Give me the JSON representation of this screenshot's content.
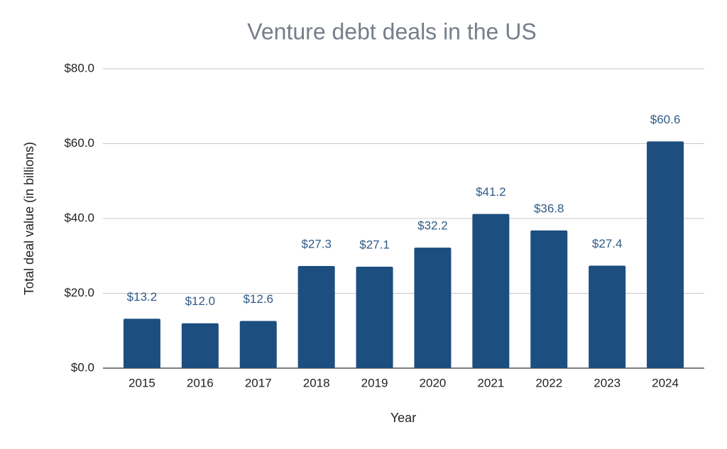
{
  "chart_data": {
    "type": "bar",
    "title": "Venture debt deals in the US",
    "x_label": "Year",
    "y_label": "Total deal value (in billions)",
    "categories": [
      "2015",
      "2016",
      "2017",
      "2018",
      "2019",
      "2020",
      "2021",
      "2022",
      "2023",
      "2024"
    ],
    "values": [
      13.2,
      12.0,
      12.6,
      27.3,
      27.1,
      32.2,
      41.2,
      36.8,
      27.4,
      60.6
    ],
    "value_labels": [
      "$13.2",
      "$12.0",
      "$12.6",
      "$27.3",
      "$27.1",
      "$32.2",
      "$41.2",
      "$36.8",
      "$27.4",
      "$60.6"
    ],
    "color": "#1c4e80",
    "ylim": [
      0,
      80
    ],
    "yticks": [
      {
        "value": 0,
        "label": "$0.0"
      },
      {
        "value": 20,
        "label": "$20.0"
      },
      {
        "value": 40,
        "label": "$40.0"
      },
      {
        "value": 60,
        "label": "$60.0"
      },
      {
        "value": 80,
        "label": "$80.0"
      }
    ],
    "grid": true
  }
}
